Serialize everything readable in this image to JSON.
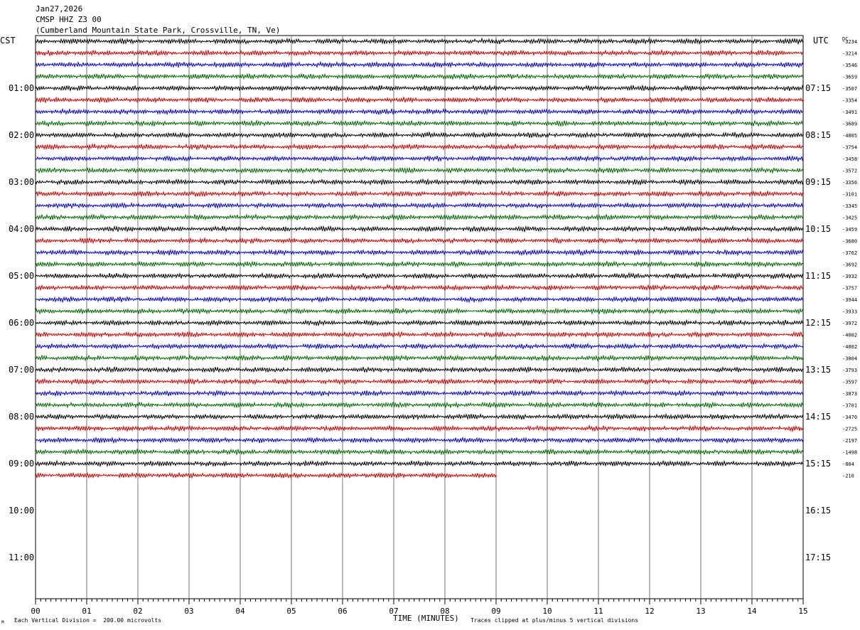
{
  "header": {
    "date": "Jan27,2026",
    "station": "CMSP HHZ Z3 00",
    "location": "(Cumberland Mountain State Park, Crossville, TN, Ve)"
  },
  "left_axis_label": "CST",
  "right_axis_label": "UTC",
  "dc_label": "DC",
  "footer": {
    "scale_note": "Each Vertical Division =  200.00 microvolts",
    "time_label": "TIME (MINUTES)",
    "clip_note": "Traces clipped at plus/minus 5 vertical divisions",
    "corner_mark": "M"
  },
  "chart_data": {
    "type": "line",
    "title": "CMSP HHZ Z3 00",
    "xlabel": "TIME (MINUTES)",
    "xlim": [
      0,
      15
    ],
    "x_ticks": [
      "00",
      "01",
      "02",
      "03",
      "04",
      "05",
      "06",
      "07",
      "08",
      "09",
      "10",
      "11",
      "12",
      "13",
      "14",
      "15"
    ],
    "grid": true,
    "minutes_per_line": 15,
    "lines_total": 48,
    "trace_colors": [
      "#000000",
      "#cc0000",
      "#0000cc",
      "#006600"
    ],
    "hour_labels_cst": [
      "01:00",
      "02:00",
      "03:00",
      "04:00",
      "05:00",
      "06:00",
      "07:00",
      "08:00",
      "09:00",
      "10:00",
      "11:00"
    ],
    "hour_labels_utc": [
      "07:15",
      "08:15",
      "09:15",
      "10:15",
      "11:15",
      "12:15",
      "13:15",
      "14:15",
      "15:15",
      "16:15",
      "17:15"
    ],
    "dc_offsets": [
      "-3234",
      "-3214",
      "-3546",
      "-3659",
      "-3507",
      "-3354",
      "-3491",
      "-3689",
      "-4005",
      "-3754",
      "-3458",
      "-3572",
      "-3356",
      "-3101",
      "-3345",
      "-3425",
      "-3459",
      "-3680",
      "-3762",
      "-3692",
      "-3932",
      "-3757",
      "-3944",
      "-3933",
      "-3972",
      "-4002",
      "-4002",
      "-3804",
      "-3793",
      "-3597",
      "-3873",
      "-3701",
      "-3470",
      "-2725",
      "-2197",
      "-1498",
      "-804",
      "-210"
    ],
    "last_trace_end_minute": 9.0
  }
}
